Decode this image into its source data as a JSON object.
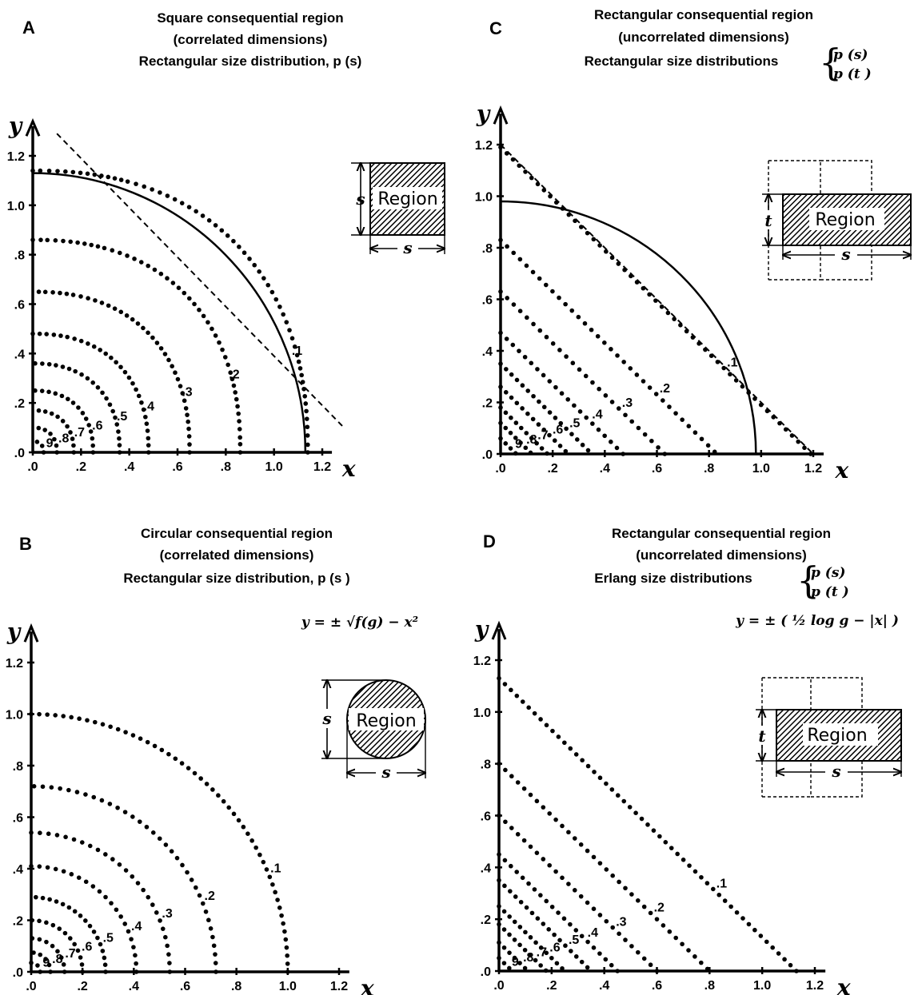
{
  "chart_data": [
    {
      "panel": "A",
      "type": "scatter",
      "title_lines": [
        "Square consequential region",
        "(correlated dimensions)",
        "Rectangular size distribution, p (s)"
      ],
      "xlabel": "x",
      "ylabel": "y",
      "xlim": [
        0,
        1.2
      ],
      "ylim": [
        0,
        1.2
      ],
      "x_tick_labels": [
        ".0",
        ".2",
        ".4",
        ".6",
        ".8",
        "1.0",
        "1.2"
      ],
      "y_tick_labels": [
        ".0",
        ".2",
        ".4",
        ".6",
        ".8",
        "1.0",
        "1.2"
      ],
      "contour_shape": "rounded-square",
      "series": [
        {
          "label": ".1",
          "level": 0.1,
          "intercept": 1.14
        },
        {
          "label": ".2",
          "level": 0.2,
          "intercept": 0.86
        },
        {
          "label": ".3",
          "level": 0.3,
          "intercept": 0.65
        },
        {
          "label": ".4",
          "level": 0.4,
          "intercept": 0.48
        },
        {
          "label": ".5",
          "level": 0.5,
          "intercept": 0.36
        },
        {
          "label": ".6",
          "level": 0.6,
          "intercept": 0.25
        },
        {
          "label": ".7",
          "level": 0.7,
          "intercept": 0.17
        },
        {
          "label": ".8",
          "level": 0.8,
          "intercept": 0.1
        },
        {
          "label": "9",
          "level": 0.9,
          "intercept": 0.045
        }
      ],
      "reference_lines": [
        {
          "kind": "circle",
          "style": "solid",
          "radius": 1.13
        },
        {
          "kind": "line",
          "style": "dashed",
          "intercept": 1.39
        }
      ],
      "inset": {
        "shape": "square",
        "label": "Region",
        "dims": [
          "s",
          "s"
        ]
      }
    },
    {
      "panel": "B",
      "type": "scatter",
      "title_lines": [
        "Circular consequential region",
        "(correlated dimensions)",
        "Rectangular size distribution, p (s )"
      ],
      "equation": "y = ± √f(g) − x²",
      "xlabel": "x",
      "ylabel": "y",
      "xlim": [
        0,
        1.2
      ],
      "ylim": [
        0,
        1.2
      ],
      "x_tick_labels": [
        ".0",
        ".2",
        ".4",
        ".6",
        ".8",
        "1.0",
        "1.2"
      ],
      "y_tick_labels": [
        ".0",
        ".2",
        ".4",
        ".6",
        ".8",
        "1.0",
        "1.2"
      ],
      "contour_shape": "circle",
      "series": [
        {
          "label": ".1",
          "level": 0.1,
          "intercept": 1.0
        },
        {
          "label": ".2",
          "level": 0.2,
          "intercept": 0.72
        },
        {
          "label": ".3",
          "level": 0.3,
          "intercept": 0.54
        },
        {
          "label": ".4",
          "level": 0.4,
          "intercept": 0.41
        },
        {
          "label": ".5",
          "level": 0.5,
          "intercept": 0.29
        },
        {
          "label": ".6",
          "level": 0.6,
          "intercept": 0.2
        },
        {
          "label": ".7",
          "level": 0.7,
          "intercept": 0.13
        },
        {
          "label": ".8",
          "level": 0.8,
          "intercept": 0.075
        },
        {
          "label": "9",
          "level": 0.9,
          "intercept": 0.035
        }
      ],
      "reference_lines": [],
      "inset": {
        "shape": "circle",
        "label": "Region",
        "dims": [
          "s",
          "s"
        ]
      }
    },
    {
      "panel": "C",
      "type": "scatter",
      "title_lines": [
        "Rectangular consequential region",
        "(uncorrelated dimensions)",
        "Rectangular size distributions"
      ],
      "brace_items": [
        "p (s)",
        "p (t )"
      ],
      "xlabel": "x",
      "ylabel": "y",
      "xlim": [
        0,
        1.2
      ],
      "ylim": [
        0,
        1.2
      ],
      "x_tick_labels": [
        ".0",
        ".2",
        ".4",
        ".6",
        ".8",
        "1.0",
        "1.2"
      ],
      "y_tick_labels": [
        ".0",
        ".2",
        ".4",
        ".6",
        ".8",
        "1.0",
        "1.2"
      ],
      "contour_shape": "diamond",
      "series": [
        {
          "label": ".1",
          "level": 0.1,
          "intercept": 1.19
        },
        {
          "label": ".2",
          "level": 0.2,
          "intercept": 0.83
        },
        {
          "label": ".3",
          "level": 0.3,
          "intercept": 0.63
        },
        {
          "label": ".4",
          "level": 0.4,
          "intercept": 0.47
        },
        {
          "label": ".5",
          "level": 0.5,
          "intercept": 0.35
        },
        {
          "label": ".6",
          "level": 0.6,
          "intercept": 0.26
        },
        {
          "label": ".7",
          "level": 0.7,
          "intercept": 0.18
        },
        {
          "label": ".8",
          "level": 0.8,
          "intercept": 0.12
        },
        {
          "label": "9",
          "level": 0.9,
          "intercept": 0.06
        }
      ],
      "reference_lines": [
        {
          "kind": "circle",
          "style": "solid",
          "radius": 0.98
        },
        {
          "kind": "line",
          "style": "dashed",
          "intercept": 1.2
        }
      ],
      "inset": {
        "shape": "rectangle",
        "label": "Region",
        "dims": [
          "s",
          "t"
        ]
      }
    },
    {
      "panel": "D",
      "type": "scatter",
      "title_lines": [
        "Rectangular consequential region",
        "(uncorrelated dimensions)",
        "Erlang size distributions"
      ],
      "brace_items": [
        "p (s)",
        "p (t )"
      ],
      "equation": "y = ± ( ½ log g − |x| )",
      "xlabel": "x",
      "ylabel": "y",
      "xlim": [
        0,
        1.2
      ],
      "ylim": [
        0,
        1.2
      ],
      "x_tick_labels": [
        ".0",
        ".2",
        ".4",
        ".6",
        ".8",
        "1.0",
        "1.2"
      ],
      "y_tick_labels": [
        ".0",
        ".2",
        ".4",
        ".6",
        ".8",
        "1.0",
        "1.2"
      ],
      "contour_shape": "diamond",
      "series": [
        {
          "label": ".1",
          "level": 0.1,
          "intercept": 1.13
        },
        {
          "label": ".2",
          "level": 0.2,
          "intercept": 0.8
        },
        {
          "label": ".3",
          "level": 0.3,
          "intercept": 0.6
        },
        {
          "label": ".4",
          "level": 0.4,
          "intercept": 0.45
        },
        {
          "label": ".5",
          "level": 0.5,
          "intercept": 0.35
        },
        {
          "label": ".6",
          "level": 0.6,
          "intercept": 0.25
        },
        {
          "label": ".7",
          "level": 0.7,
          "intercept": 0.18
        },
        {
          "label": ".8",
          "level": 0.8,
          "intercept": 0.11
        },
        {
          "label": "9",
          "level": 0.9,
          "intercept": 0.05
        }
      ],
      "reference_lines": [],
      "inset": {
        "shape": "rectangle",
        "label": "Region",
        "dims": [
          "s",
          "t"
        ]
      }
    }
  ]
}
